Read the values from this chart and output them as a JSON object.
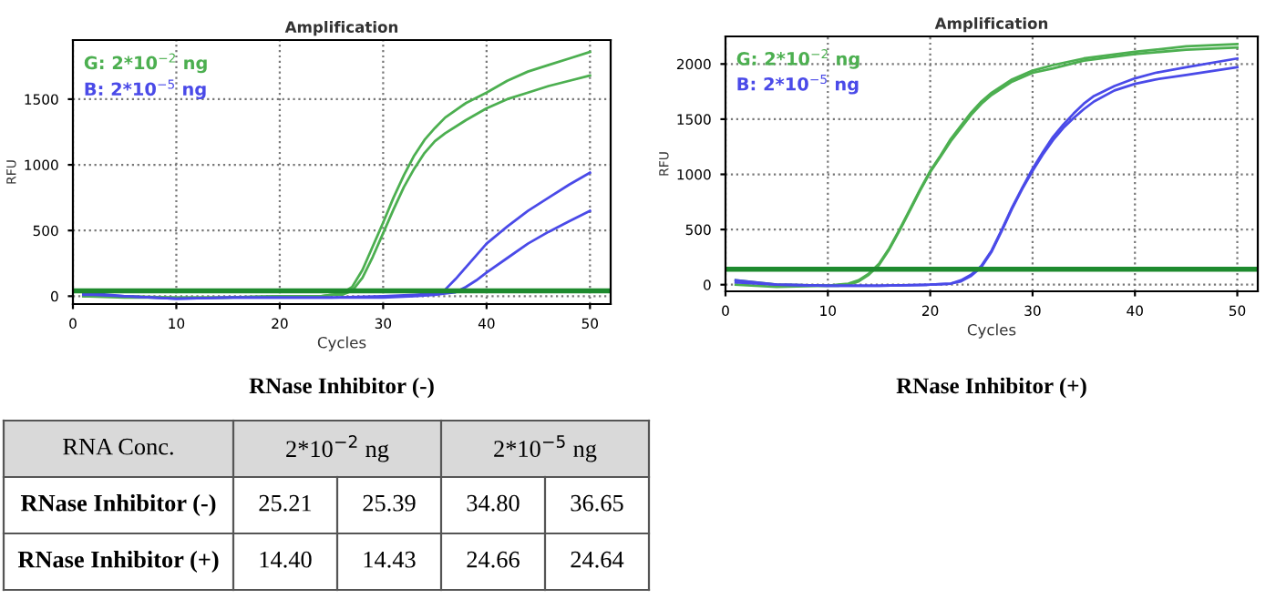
{
  "chart_data": [
    {
      "type": "line",
      "title": "Amplification",
      "xlabel": "Cycles",
      "ylabel": "RFU",
      "annotations": [
        "RNase Inhibitor (-)"
      ],
      "xlim": [
        0,
        52
      ],
      "xticks": [
        0,
        10,
        20,
        30,
        40,
        50
      ],
      "ylim": [
        -60,
        1950
      ],
      "yticks": [
        0,
        500,
        1000,
        1500
      ],
      "grid": true,
      "marker": "none",
      "line_style": "solid",
      "ref_lines": [
        {
          "axis": "y",
          "value": 40,
          "color": "#1e8a2e"
        }
      ],
      "series": [
        {
          "name": "G: 2*10$^{−2}$ ng",
          "color": "#4caf50",
          "x": [
            1,
            5,
            10,
            15,
            20,
            24,
            25,
            26,
            27,
            28,
            29,
            30,
            31,
            32,
            33,
            34,
            35,
            36,
            38,
            40,
            42,
            44,
            46,
            48,
            50
          ],
          "values": [
            0,
            0,
            -10,
            -10,
            0,
            0,
            10,
            20,
            70,
            200,
            380,
            560,
            750,
            920,
            1070,
            1190,
            1280,
            1360,
            1470,
            1550,
            1640,
            1710,
            1760,
            1810,
            1860
          ]
        },
        {
          "color": "#4caf50",
          "x": [
            1,
            5,
            10,
            15,
            20,
            24,
            25,
            26,
            27,
            28,
            29,
            30,
            31,
            32,
            33,
            34,
            35,
            36,
            38,
            40,
            42,
            44,
            46,
            48,
            50
          ],
          "values": [
            0,
            -10,
            -10,
            -10,
            0,
            0,
            10,
            10,
            40,
            140,
            300,
            480,
            660,
            830,
            970,
            1090,
            1180,
            1240,
            1340,
            1430,
            1500,
            1550,
            1600,
            1640,
            1680
          ]
        },
        {
          "name": "B: 2*10$^{−5}$ ng",
          "color": "#4a4ae8",
          "x": [
            1,
            2,
            5,
            10,
            15,
            20,
            25,
            30,
            33,
            35,
            36,
            37,
            38,
            39,
            40,
            42,
            44,
            46,
            48,
            50
          ],
          "values": [
            20,
            20,
            0,
            -20,
            -10,
            -10,
            -10,
            0,
            10,
            20,
            50,
            130,
            220,
            310,
            400,
            530,
            650,
            750,
            850,
            940
          ]
        },
        {
          "color": "#4a4ae8",
          "x": [
            1,
            2,
            5,
            10,
            15,
            20,
            25,
            30,
            33,
            35,
            36,
            37,
            38,
            39,
            40,
            42,
            44,
            46,
            48,
            50
          ],
          "values": [
            10,
            10,
            0,
            -20,
            -10,
            -10,
            -10,
            -10,
            0,
            10,
            20,
            30,
            70,
            120,
            180,
            290,
            400,
            490,
            570,
            650
          ]
        }
      ]
    },
    {
      "type": "line",
      "title": "Amplification",
      "xlabel": "Cycles",
      "ylabel": "RFU",
      "annotations": [
        "RNase Inhibitor (+)"
      ],
      "xlim": [
        0,
        52
      ],
      "xticks": [
        0,
        10,
        20,
        30,
        40,
        50
      ],
      "ylim": [
        -60,
        2250
      ],
      "yticks": [
        0,
        500,
        1000,
        1500,
        2000
      ],
      "grid": true,
      "marker": "none",
      "line_style": "solid",
      "ref_lines": [
        {
          "axis": "y",
          "value": 140,
          "color": "#1e8a2e"
        }
      ],
      "series": [
        {
          "name": "G: 2*10$^{−2}$ ng",
          "color": "#4caf50",
          "x": [
            1,
            5,
            10,
            11,
            12,
            13,
            14,
            15,
            16,
            17,
            18,
            19,
            20,
            21,
            22,
            23,
            24,
            25,
            26,
            28,
            30,
            32,
            35,
            40,
            45,
            50
          ],
          "values": [
            40,
            0,
            -10,
            0,
            10,
            40,
            100,
            190,
            330,
            500,
            680,
            860,
            1030,
            1170,
            1320,
            1440,
            1560,
            1660,
            1740,
            1860,
            1940,
            1990,
            2050,
            2110,
            2160,
            2180
          ]
        },
        {
          "color": "#4caf50",
          "x": [
            1,
            5,
            10,
            11,
            12,
            13,
            14,
            15,
            16,
            17,
            18,
            19,
            20,
            21,
            22,
            23,
            24,
            25,
            26,
            28,
            30,
            32,
            35,
            40,
            45,
            50
          ],
          "values": [
            0,
            -20,
            -10,
            -10,
            0,
            30,
            90,
            180,
            320,
            490,
            670,
            850,
            1020,
            1160,
            1300,
            1420,
            1540,
            1640,
            1720,
            1840,
            1920,
            1960,
            2030,
            2090,
            2130,
            2150
          ]
        },
        {
          "name": "B: 2*10$^{−5}$ ng",
          "color": "#4a4ae8",
          "x": [
            1,
            5,
            10,
            15,
            20,
            22,
            23,
            24,
            25,
            26,
            27,
            28,
            29,
            30,
            31,
            32,
            33,
            34,
            35,
            36,
            38,
            40,
            42,
            45,
            50
          ],
          "values": [
            40,
            0,
            -10,
            -10,
            0,
            10,
            40,
            90,
            170,
            310,
            500,
            700,
            880,
            1050,
            1200,
            1340,
            1450,
            1550,
            1640,
            1710,
            1800,
            1870,
            1920,
            1970,
            2050
          ]
        },
        {
          "color": "#4a4ae8",
          "x": [
            1,
            5,
            10,
            15,
            20,
            22,
            23,
            24,
            25,
            26,
            27,
            28,
            29,
            30,
            31,
            32,
            33,
            34,
            35,
            36,
            38,
            40,
            42,
            45,
            50
          ],
          "values": [
            20,
            0,
            -10,
            -10,
            0,
            10,
            30,
            80,
            160,
            300,
            490,
            690,
            870,
            1030,
            1180,
            1310,
            1420,
            1510,
            1590,
            1660,
            1760,
            1820,
            1860,
            1900,
            1970
          ]
        }
      ]
    },
    {
      "type": "other",
      "categories": [
        "RNA Conc.",
        "2*10$^{−2}$ ng",
        "2*10$^{−5}$ ng"
      ],
      "y_categories": [
        "RNase Inhibitor (-)",
        "RNase Inhibitor (+)"
      ],
      "cell_labels": [
        [
          "25.21",
          "25.39",
          "34.80",
          "36.65"
        ],
        [
          "14.40",
          "14.43",
          "24.66",
          "24.64"
        ]
      ]
    }
  ]
}
